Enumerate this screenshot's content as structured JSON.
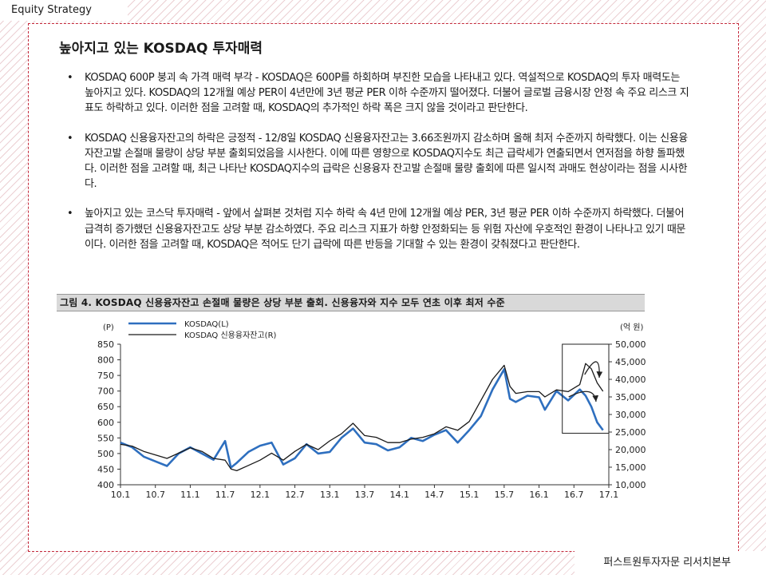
{
  "header": {
    "label": "Equity Strategy"
  },
  "footer": {
    "label": "퍼스트원투자자문 리서치본부"
  },
  "title": "높아지고 있는 KOSDAQ 투자매력",
  "bullets": [
    "KOSDAQ 600P 붕괴 속 가격 매력 부각 - KOSDAQ은 600P를 하회하며 부진한 모습을 나타내고 있다. 역설적으로 KOSDAQ의 투자 매력도는 높아지고 있다. KOSDAQ의 12개월 예상 PER이 4년만에 3년 평균 PER 이하 수준까지 떨어졌다. 더불어 글로벌 금융시장 안정 속 주요 리스크 지표도 하락하고 있다. 이러한 점을 고려할 때, KOSDAQ의 추가적인 하락 폭은 크지 않을 것이라고 판단한다.",
    "KOSDAQ 신용융자잔고의 하락은 긍정적 - 12/8일 KOSDAQ 신용융자잔고는 3.66조원까지 감소하며 올해 최저 수준까지 하락했다. 이는 신용융자잔고발 손절매 물량이 상당 부분 출회되었음을 시사한다. 이에 따른 영향으로 KOSDAQ지수도 최근 급락세가 연출되면서 연저점을 하향 돌파했다. 이러한 점을 고려할 때, 최근 나타난 KOSDAQ지수의 급락은 신용융자 잔고발 손절매 물량 출회에 따른 일시적 과매도 현상이라는 점을 시사한다.",
    "높아지고 있는 코스닥 투자매력 - 앞에서 살펴본 것처럼 지수 하락 속 4년 만에 12개월 예상 PER, 3년 평균 PER 이하 수준까지 하락했다. 더불어 급격히 증가했던 신용융자잔고도 상당 부분 감소하였다. 주요 리스크 지표가 하향 안정화되는 등 위험 자산에 우호적인 환경이 나타나고 있기 때문이다. 이러한 점을 고려할 때, KOSDAQ은 적어도 단기 급락에 따른 반등을 기대할 수 있는 환경이 갖춰졌다고 판단한다."
  ],
  "bullet_symbol": "•",
  "figure_caption": "그림 4. KOSDAQ 신용융자잔고 손절매 물량은 상당 부분 출회. 신용융자와 지수 모두 연초 이후 최저 수준",
  "chart_data": {
    "type": "line",
    "x_ticks": [
      "10.1",
      "10.7",
      "11.1",
      "11.7",
      "12.1",
      "12.7",
      "13.1",
      "13.7",
      "14.1",
      "14.7",
      "15.1",
      "15.7",
      "16.1",
      "16.7",
      "17.1"
    ],
    "x_start": "2010-01",
    "x_end": "2017-01",
    "left_axis": {
      "label": "(P)",
      "min": 400,
      "max": 850,
      "ticks": [
        "850",
        "800",
        "750",
        "700",
        "650",
        "600",
        "550",
        "500",
        "450",
        "400"
      ]
    },
    "right_axis": {
      "label": "(억 원)",
      "min": 10000,
      "max": 50000,
      "ticks": [
        "50,000",
        "45,000",
        "40,000",
        "35,000",
        "30,000",
        "25,000",
        "20,000",
        "15,000",
        "10,000"
      ]
    },
    "legend_position": "top-left",
    "grid": false,
    "series": [
      {
        "name": "KOSDAQ(L)",
        "axis": "left",
        "color": "#2e6fbf",
        "x": [
          "2010-01",
          "2010-03",
          "2010-05",
          "2010-07",
          "2010-09",
          "2010-11",
          "2011-01",
          "2011-03",
          "2011-05",
          "2011-07",
          "2011-08",
          "2011-09",
          "2011-11",
          "2012-01",
          "2012-03",
          "2012-05",
          "2012-07",
          "2012-09",
          "2012-11",
          "2013-01",
          "2013-03",
          "2013-05",
          "2013-07",
          "2013-09",
          "2013-11",
          "2014-01",
          "2014-03",
          "2014-05",
          "2014-07",
          "2014-09",
          "2014-11",
          "2015-01",
          "2015-03",
          "2015-05",
          "2015-07",
          "2015-08",
          "2015-09",
          "2015-11",
          "2016-01",
          "2016-02",
          "2016-04",
          "2016-06",
          "2016-08",
          "2016-09",
          "2016-10",
          "2016-11",
          "2016-12"
        ],
        "values": [
          535,
          520,
          490,
          475,
          460,
          500,
          520,
          500,
          480,
          540,
          455,
          470,
          505,
          525,
          535,
          465,
          485,
          530,
          500,
          505,
          550,
          580,
          535,
          530,
          510,
          520,
          550,
          540,
          560,
          575,
          535,
          575,
          620,
          705,
          770,
          675,
          665,
          685,
          680,
          640,
          700,
          670,
          705,
          685,
          650,
          600,
          575
        ]
      },
      {
        "name": "KOSDAQ 신용융자잔고(R)",
        "axis": "right",
        "color": "#1a1a1a",
        "x": [
          "2010-01",
          "2010-03",
          "2010-05",
          "2010-07",
          "2010-09",
          "2010-11",
          "2011-01",
          "2011-03",
          "2011-05",
          "2011-07",
          "2011-08",
          "2011-09",
          "2011-11",
          "2012-01",
          "2012-03",
          "2012-05",
          "2012-07",
          "2012-09",
          "2012-11",
          "2013-01",
          "2013-03",
          "2013-05",
          "2013-07",
          "2013-09",
          "2013-11",
          "2014-01",
          "2014-03",
          "2014-05",
          "2014-07",
          "2014-09",
          "2014-11",
          "2015-01",
          "2015-03",
          "2015-05",
          "2015-07",
          "2015-08",
          "2015-09",
          "2015-11",
          "2016-01",
          "2016-02",
          "2016-04",
          "2016-06",
          "2016-08",
          "2016-09",
          "2016-10",
          "2016-11",
          "2016-12"
        ],
        "values": [
          21500,
          21000,
          19500,
          18500,
          17500,
          19000,
          20500,
          19500,
          17500,
          17000,
          14500,
          14000,
          15500,
          17000,
          19000,
          17000,
          19500,
          21500,
          20000,
          22500,
          24500,
          27500,
          24000,
          23500,
          22000,
          22000,
          23000,
          23500,
          24500,
          26500,
          25500,
          28000,
          34000,
          40000,
          44000,
          38000,
          36000,
          36500,
          36500,
          35000,
          37000,
          36500,
          38500,
          44500,
          43000,
          39000,
          36600
        ]
      }
    ],
    "annotation": {
      "type": "box",
      "from": "2016-05",
      "to": "2017-01",
      "left_min": 565,
      "left_max": 850
    }
  }
}
